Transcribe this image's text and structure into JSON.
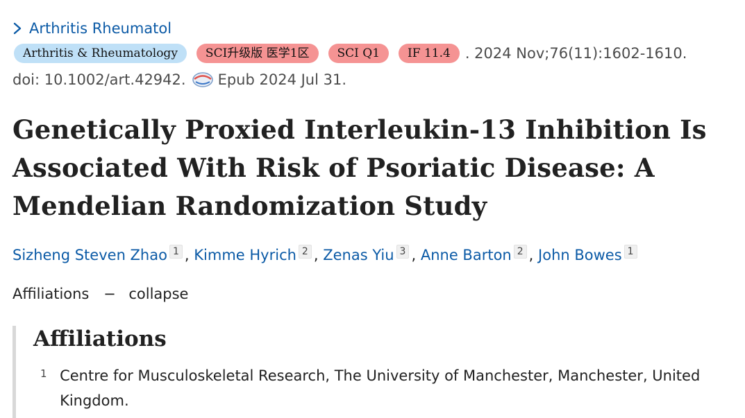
{
  "journal": {
    "name": "Arthritis Rheumatol"
  },
  "badges": {
    "journal_full": "Arthritis & Rheumatology",
    "sci_zone": "SCI升级版 医学1区",
    "sci_quartile": "SCI Q1",
    "impact_factor": "IF 11.4"
  },
  "citation": {
    "date_volume": ". 2024 Nov;76(11):1602-1610.",
    "doi": "doi: 10.1002/art.42942.",
    "epub": "Epub 2024 Jul 31."
  },
  "article": {
    "title": "Genetically Proxied Interleukin-13 Inhibition Is Associated With Risk of Psoriatic Disease: A Mendelian Randomization Study"
  },
  "authors": [
    {
      "name": "Sizheng Steven Zhao",
      "aff": "1"
    },
    {
      "name": "Kimme Hyrich",
      "aff": "2"
    },
    {
      "name": "Zenas Yiu",
      "aff": "3"
    },
    {
      "name": "Anne Barton",
      "aff": "2"
    },
    {
      "name": "John Bowes",
      "aff": "1"
    }
  ],
  "separator": ",",
  "affiliations_toggle": {
    "label": "Affiliations",
    "dash": "−",
    "action": "collapse"
  },
  "affiliations": {
    "heading": "Affiliations",
    "items": [
      {
        "num": "1",
        "text": "Centre for Musculoskeletal Research, The University of Manchester, Manchester, United Kingdom."
      }
    ]
  },
  "colors": {
    "link": "#0b5aa6",
    "badge_journal_bg": "#bfe0f7",
    "badge_red_bg": "#f59393",
    "text": "#212121",
    "meta_text": "#4b4b4b"
  },
  "icons": {
    "journal_chevron": "chevron-right-icon",
    "epub": "epub-icon"
  }
}
